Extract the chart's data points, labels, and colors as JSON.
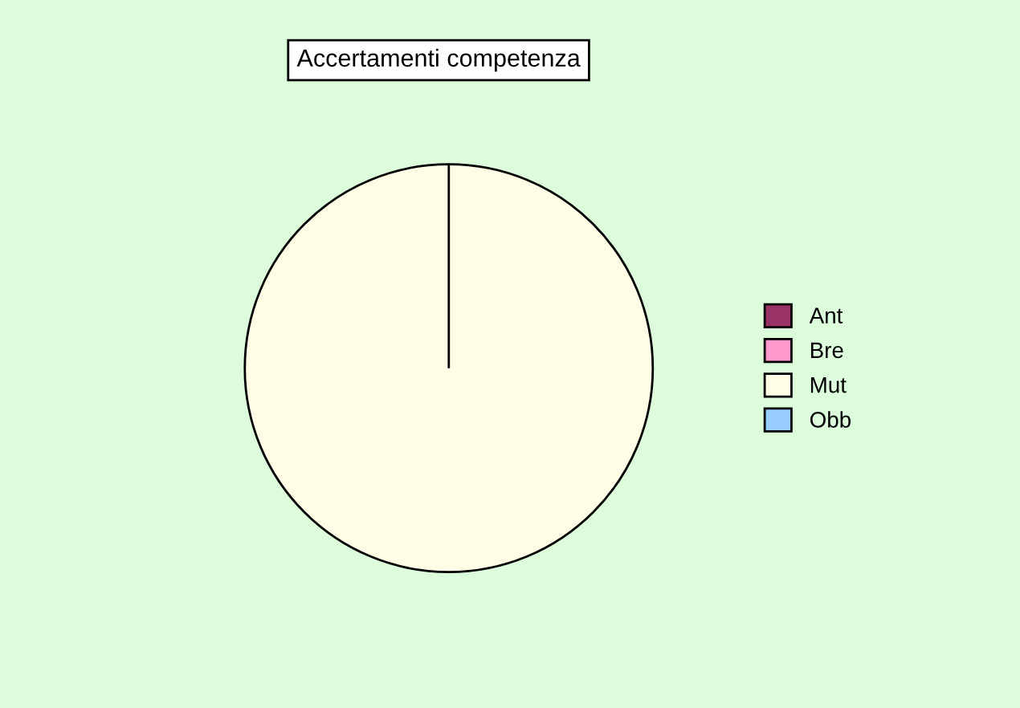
{
  "chart_data": {
    "type": "pie",
    "title": "Accertamenti competenza",
    "categories": [
      "Ant",
      "Bre",
      "Mut",
      "Obb"
    ],
    "values": [
      0,
      0,
      100,
      0
    ],
    "colors": [
      "#993366",
      "#ff99cc",
      "#fffde6",
      "#99ccff"
    ],
    "legend": "right"
  }
}
